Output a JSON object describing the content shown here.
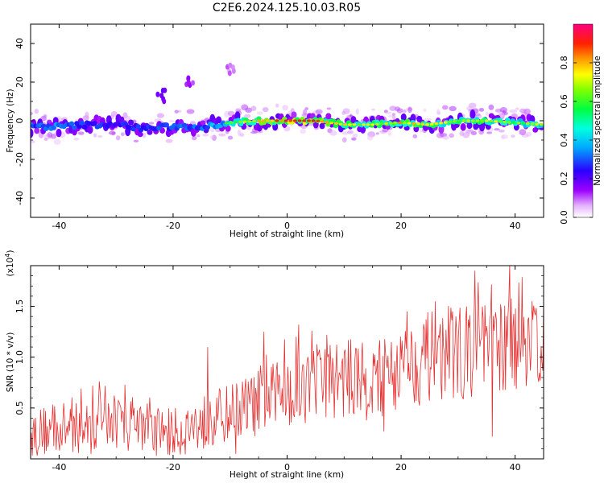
{
  "title": "C2E6.2024.125.10.03.R05",
  "chart_data": [
    {
      "type": "heatmap",
      "xlabel": "Height of straight line (km)",
      "ylabel": "Frequency (Hz)",
      "xlim": [
        -45,
        45
      ],
      "ylim": [
        -50,
        50
      ],
      "x_ticks": [
        -40,
        -20,
        0,
        20,
        40
      ],
      "y_ticks": [
        40,
        20,
        0,
        -20,
        -40
      ],
      "x_tick_labels": [
        "-40",
        "-20",
        "0",
        "20",
        "40"
      ],
      "y_tick_labels": [
        "40",
        "20",
        "0",
        "-20",
        "-40"
      ],
      "colorbar": {
        "label": "Normalized spectral amplitude",
        "range": [
          0,
          1
        ],
        "ticks": [
          0.0,
          0.2,
          0.4,
          0.6,
          0.8
        ],
        "tick_labels": [
          "0.0",
          "0.2",
          "0.4",
          "0.6",
          "0.8"
        ],
        "colormap": "rainbow (white-magenta-purple-blue-cyan-green-yellow-orange-red-pink)"
      },
      "ridge_frequency_hz": [
        [
          -45,
          -3
        ],
        [
          -40,
          -3
        ],
        [
          -35,
          -2
        ],
        [
          -30,
          -2
        ],
        [
          -25,
          -4
        ],
        [
          -20,
          -3
        ],
        [
          -15,
          -3
        ],
        [
          -10,
          -1
        ],
        [
          -5,
          0
        ],
        [
          0,
          0
        ],
        [
          5,
          0
        ],
        [
          10,
          -2
        ],
        [
          15,
          -2
        ],
        [
          20,
          -1
        ],
        [
          25,
          -2
        ],
        [
          30,
          0
        ],
        [
          35,
          0
        ],
        [
          40,
          -1
        ],
        [
          45,
          -2
        ]
      ],
      "ridge_amplitude": [
        [
          -45,
          0.45
        ],
        [
          -40,
          0.45
        ],
        [
          -35,
          0.4
        ],
        [
          -30,
          0.35
        ],
        [
          -25,
          0.4
        ],
        [
          -20,
          0.4
        ],
        [
          -15,
          0.45
        ],
        [
          -10,
          0.6
        ],
        [
          -5,
          0.8
        ],
        [
          0,
          0.95
        ],
        [
          5,
          0.9
        ],
        [
          10,
          0.75
        ],
        [
          15,
          0.7
        ],
        [
          20,
          0.8
        ],
        [
          25,
          0.75
        ],
        [
          30,
          0.7
        ],
        [
          35,
          0.75
        ],
        [
          40,
          0.65
        ],
        [
          45,
          0.7
        ]
      ],
      "features": [
        {
          "x": -22,
          "y": 13,
          "amplitude": 0.15
        },
        {
          "x": -17,
          "y": 20,
          "amplitude": 0.1
        },
        {
          "x": -10,
          "y": 26,
          "amplitude": 0.05
        }
      ]
    },
    {
      "type": "line",
      "xlabel": "Height of straight line (km)",
      "ylabel": "SNR (10 * v/v)",
      "y_multiplier_label": "(x10^4)",
      "xlim": [
        -45,
        45
      ],
      "ylim": [
        0,
        1.9
      ],
      "x_ticks": [
        -40,
        -20,
        0,
        20,
        40
      ],
      "y_ticks": [
        0.5,
        1.0,
        1.5
      ],
      "x_tick_labels": [
        "-40",
        "-20",
        "0",
        "20",
        "40"
      ],
      "y_tick_labels": [
        "0.5",
        "1.0",
        "1.5"
      ],
      "series": [
        {
          "color": "#e83030",
          "trend": [
            [
              -45,
              0.25
            ],
            [
              -40,
              0.3
            ],
            [
              -35,
              0.3
            ],
            [
              -30,
              0.35
            ],
            [
              -25,
              0.3
            ],
            [
              -20,
              0.25
            ],
            [
              -15,
              0.35
            ],
            [
              -10,
              0.45
            ],
            [
              -5,
              0.55
            ],
            [
              0,
              0.65
            ],
            [
              5,
              0.75
            ],
            [
              10,
              0.8
            ],
            [
              15,
              0.75
            ],
            [
              20,
              0.9
            ],
            [
              25,
              1.0
            ],
            [
              30,
              1.05
            ],
            [
              35,
              1.05
            ],
            [
              40,
              1.15
            ],
            [
              45,
              1.2
            ]
          ],
          "peaks": [
            [
              -14,
              1.1
            ],
            [
              -4,
              1.25
            ],
            [
              2,
              1.32
            ],
            [
              7,
              1.22
            ],
            [
              21,
              1.45
            ],
            [
              26,
              1.55
            ],
            [
              33,
              1.85
            ],
            [
              39,
              1.92
            ],
            [
              43,
              1.55
            ]
          ],
          "troughs": [
            [
              -45,
              0.03
            ],
            [
              -23,
              0.03
            ],
            [
              -9,
              0.05
            ],
            [
              17,
              0.27
            ],
            [
              36,
              0.22
            ]
          ]
        }
      ]
    }
  ]
}
